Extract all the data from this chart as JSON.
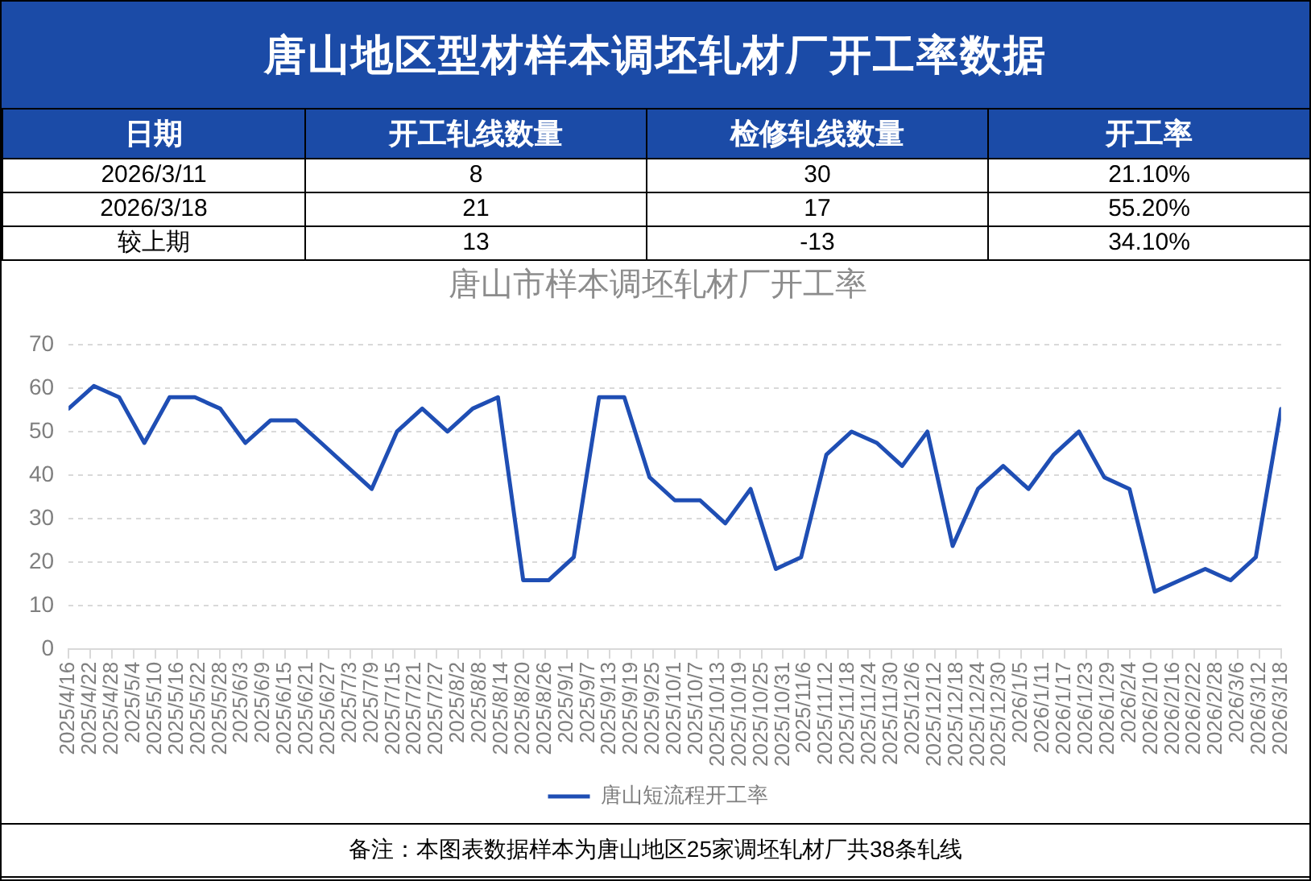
{
  "chart_data": [
    {
      "type": "other",
      "title": "唐山地区型材样本调坯轧材厂开工率数据",
      "categories": [
        "日期",
        "开工轧线数量",
        "检修轧线数量",
        "开工率"
      ],
      "annotations": [
        "2026/3/11",
        "8",
        "30",
        "21.10%",
        "2026/3/18",
        "21",
        "17",
        "55.20%",
        "较上期",
        "13",
        "-13",
        "34.10%"
      ]
    },
    {
      "type": "line",
      "title": "唐山市样本调坯轧材厂开工率",
      "x": [
        "2025-04-16",
        "2025-04-23",
        "2025-04-30",
        "2025-05-07",
        "2025-05-14",
        "2025-05-21",
        "2025-05-28",
        "2025-06-04",
        "2025-06-11",
        "2025-06-18",
        "2025-06-25",
        "2025-07-02",
        "2025-07-09",
        "2025-07-16",
        "2025-07-23",
        "2025-07-30",
        "2025-08-06",
        "2025-08-13",
        "2025-08-20",
        "2025-08-27",
        "2025-09-03",
        "2025-09-10",
        "2025-09-17",
        "2025-09-24",
        "2025-10-01",
        "2025-10-08",
        "2025-10-15",
        "2025-10-22",
        "2025-10-29",
        "2025-11-05",
        "2025-11-12",
        "2025-11-19",
        "2025-11-26",
        "2025-12-03",
        "2025-12-10",
        "2025-12-17",
        "2025-12-24",
        "2025-12-31",
        "2026-01-07",
        "2026-01-14",
        "2026-01-21",
        "2026-01-28",
        "2026-02-04",
        "2026-02-11",
        "2026-02-18",
        "2026-02-25",
        "2026-03-04",
        "2026-03-11",
        "2026-03-18"
      ],
      "series": [
        {
          "name": "唐山短流程开工率",
          "color": "#1f4eb4",
          "values": [
            55.3,
            60.5,
            57.9,
            47.4,
            57.9,
            57.9,
            55.3,
            47.4,
            52.6,
            52.6,
            47.4,
            42.1,
            36.8,
            50.0,
            55.3,
            50.0,
            55.3,
            57.9,
            15.8,
            15.8,
            21.1,
            57.9,
            57.9,
            39.5,
            34.2,
            34.2,
            28.9,
            36.8,
            18.4,
            21.1,
            44.7,
            50.0,
            47.4,
            42.1,
            50.0,
            23.7,
            36.8,
            42.1,
            36.8,
            44.7,
            50.0,
            39.5,
            36.8,
            13.2,
            15.8,
            18.4,
            15.8,
            21.1,
            55.2
          ]
        }
      ],
      "xlim": [
        "2025-04-16",
        "2026-03-18"
      ],
      "xticks": [
        {
          "value": "2025-04-16",
          "label": "2025/4/16"
        },
        {
          "value": "2025-04-22",
          "label": "2025/4/22"
        },
        {
          "value": "2025-04-28",
          "label": "2025/4/28"
        },
        {
          "value": "2025-05-04",
          "label": "2025/5/4"
        },
        {
          "value": "2025-05-10",
          "label": "2025/5/10"
        },
        {
          "value": "2025-05-16",
          "label": "2025/5/16"
        },
        {
          "value": "2025-05-22",
          "label": "2025/5/22"
        },
        {
          "value": "2025-05-28",
          "label": "2025/5/28"
        },
        {
          "value": "2025-06-03",
          "label": "2025/6/3"
        },
        {
          "value": "2025-06-09",
          "label": "2025/6/9"
        },
        {
          "value": "2025-06-15",
          "label": "2025/6/15"
        },
        {
          "value": "2025-06-21",
          "label": "2025/6/21"
        },
        {
          "value": "2025-06-27",
          "label": "2025/6/27"
        },
        {
          "value": "2025-07-03",
          "label": "2025/7/3"
        },
        {
          "value": "2025-07-09",
          "label": "2025/7/9"
        },
        {
          "value": "2025-07-15",
          "label": "2025/7/15"
        },
        {
          "value": "2025-07-21",
          "label": "2025/7/21"
        },
        {
          "value": "2025-07-27",
          "label": "2025/7/27"
        },
        {
          "value": "2025-08-02",
          "label": "2025/8/2"
        },
        {
          "value": "2025-08-08",
          "label": "2025/8/8"
        },
        {
          "value": "2025-08-14",
          "label": "2025/8/14"
        },
        {
          "value": "2025-08-20",
          "label": "2025/8/20"
        },
        {
          "value": "2025-08-26",
          "label": "2025/8/26"
        },
        {
          "value": "2025-09-01",
          "label": "2025/9/1"
        },
        {
          "value": "2025-09-07",
          "label": "2025/9/7"
        },
        {
          "value": "2025-09-13",
          "label": "2025/9/13"
        },
        {
          "value": "2025-09-19",
          "label": "2025/9/19"
        },
        {
          "value": "2025-09-25",
          "label": "2025/9/25"
        },
        {
          "value": "2025-10-01",
          "label": "2025/10/1"
        },
        {
          "value": "2025-10-07",
          "label": "2025/10/7"
        },
        {
          "value": "2025-10-13",
          "label": "2025/10/13"
        },
        {
          "value": "2025-10-19",
          "label": "2025/10/19"
        },
        {
          "value": "2025-10-25",
          "label": "2025/10/25"
        },
        {
          "value": "2025-10-31",
          "label": "2025/10/31"
        },
        {
          "value": "2025-11-06",
          "label": "2025/11/6"
        },
        {
          "value": "2025-11-12",
          "label": "2025/11/12"
        },
        {
          "value": "2025-11-18",
          "label": "2025/11/18"
        },
        {
          "value": "2025-11-24",
          "label": "2025/11/24"
        },
        {
          "value": "2025-11-30",
          "label": "2025/11/30"
        },
        {
          "value": "2025-12-06",
          "label": "2025/12/6"
        },
        {
          "value": "2025-12-12",
          "label": "2025/12/12"
        },
        {
          "value": "2025-12-18",
          "label": "2025/12/18"
        },
        {
          "value": "2025-12-24",
          "label": "2025/12/24"
        },
        {
          "value": "2025-12-30",
          "label": "2025/12/30"
        },
        {
          "value": "2026-01-05",
          "label": "2026/1/5"
        },
        {
          "value": "2026-01-11",
          "label": "2026/1/11"
        },
        {
          "value": "2026-01-17",
          "label": "2026/1/17"
        },
        {
          "value": "2026-01-23",
          "label": "2026/1/23"
        },
        {
          "value": "2026-01-29",
          "label": "2026/1/29"
        },
        {
          "value": "2026-02-04",
          "label": "2026/2/4"
        },
        {
          "value": "2026-02-10",
          "label": "2026/2/10"
        },
        {
          "value": "2026-02-16",
          "label": "2026/2/16"
        },
        {
          "value": "2026-02-22",
          "label": "2026/2/22"
        },
        {
          "value": "2026-02-28",
          "label": "2026/2/28"
        },
        {
          "value": "2026-03-06",
          "label": "2026/3/6"
        },
        {
          "value": "2026-03-12",
          "label": "2026/3/12"
        },
        {
          "value": "2026-03-18",
          "label": "2026/3/18"
        }
      ],
      "ylim": [
        0,
        70
      ],
      "yticks": [
        0,
        10,
        20,
        30,
        40,
        50,
        60,
        70
      ],
      "grid": "y",
      "legend": "bottom",
      "marker": "none",
      "line_style": "solid",
      "annotations": [
        "备注：本图表数据样本为唐山地区25家调坯轧材厂共38条轧线"
      ]
    }
  ]
}
